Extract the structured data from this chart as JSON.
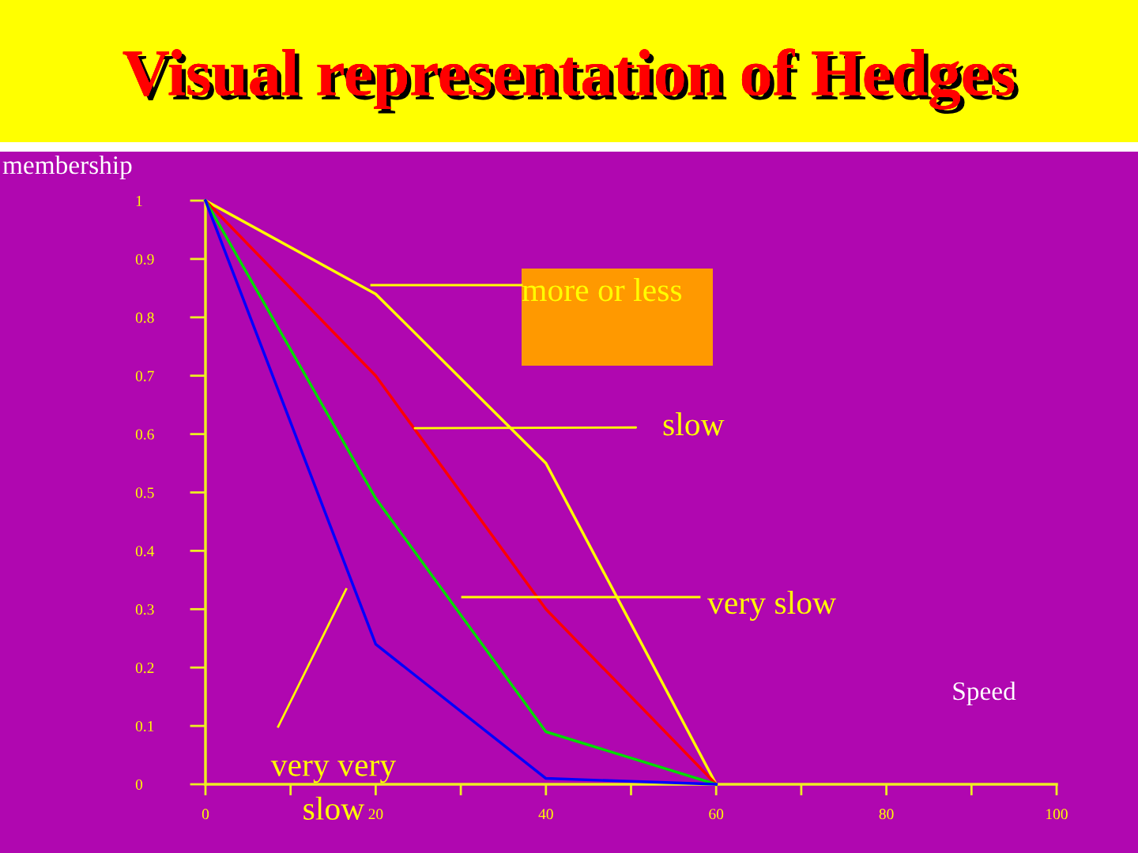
{
  "chart_data": {
    "type": "line",
    "title": "Visual representation of Hedges",
    "xlabel": "Speed",
    "ylabel": "membership",
    "x": [
      0,
      20,
      40,
      60
    ],
    "series": [
      {
        "color": "#ffff00",
        "values": [
          1,
          0.84,
          0.55,
          0
        ]
      },
      {
        "color": "#ff0000",
        "values": [
          1,
          0.7,
          0.3,
          0
        ]
      },
      {
        "color": "#00dd00",
        "values": [
          1,
          0.49,
          0.09,
          0
        ]
      },
      {
        "color": "#0000ff",
        "values": [
          1,
          0.24,
          0.01,
          0
        ]
      }
    ],
    "annotations": [
      "more or less",
      {
        "text": "slow",
        "x": 24.6,
        "y": 0.61
      },
      "very slow",
      "very very\nslow"
    ],
    "xlim": [
      0,
      100
    ],
    "ylim": [
      0,
      1
    ],
    "xticks": [
      0,
      {
        "value": 10,
        "label": null
      },
      20,
      {
        "value": 30,
        "label": null
      },
      40,
      {
        "value": 50,
        "label": null
      },
      60,
      {
        "value": 70,
        "label": null
      },
      80,
      {
        "value": 90,
        "label": null
      },
      100
    ],
    "yticks": [
      0,
      0.1,
      0.2,
      0.3,
      0.4,
      0.5,
      0.6,
      0.7,
      0.8,
      0.9,
      1
    ],
    "grid": false,
    "legend": false,
    "marker": "none",
    "line_style": "solid"
  }
}
